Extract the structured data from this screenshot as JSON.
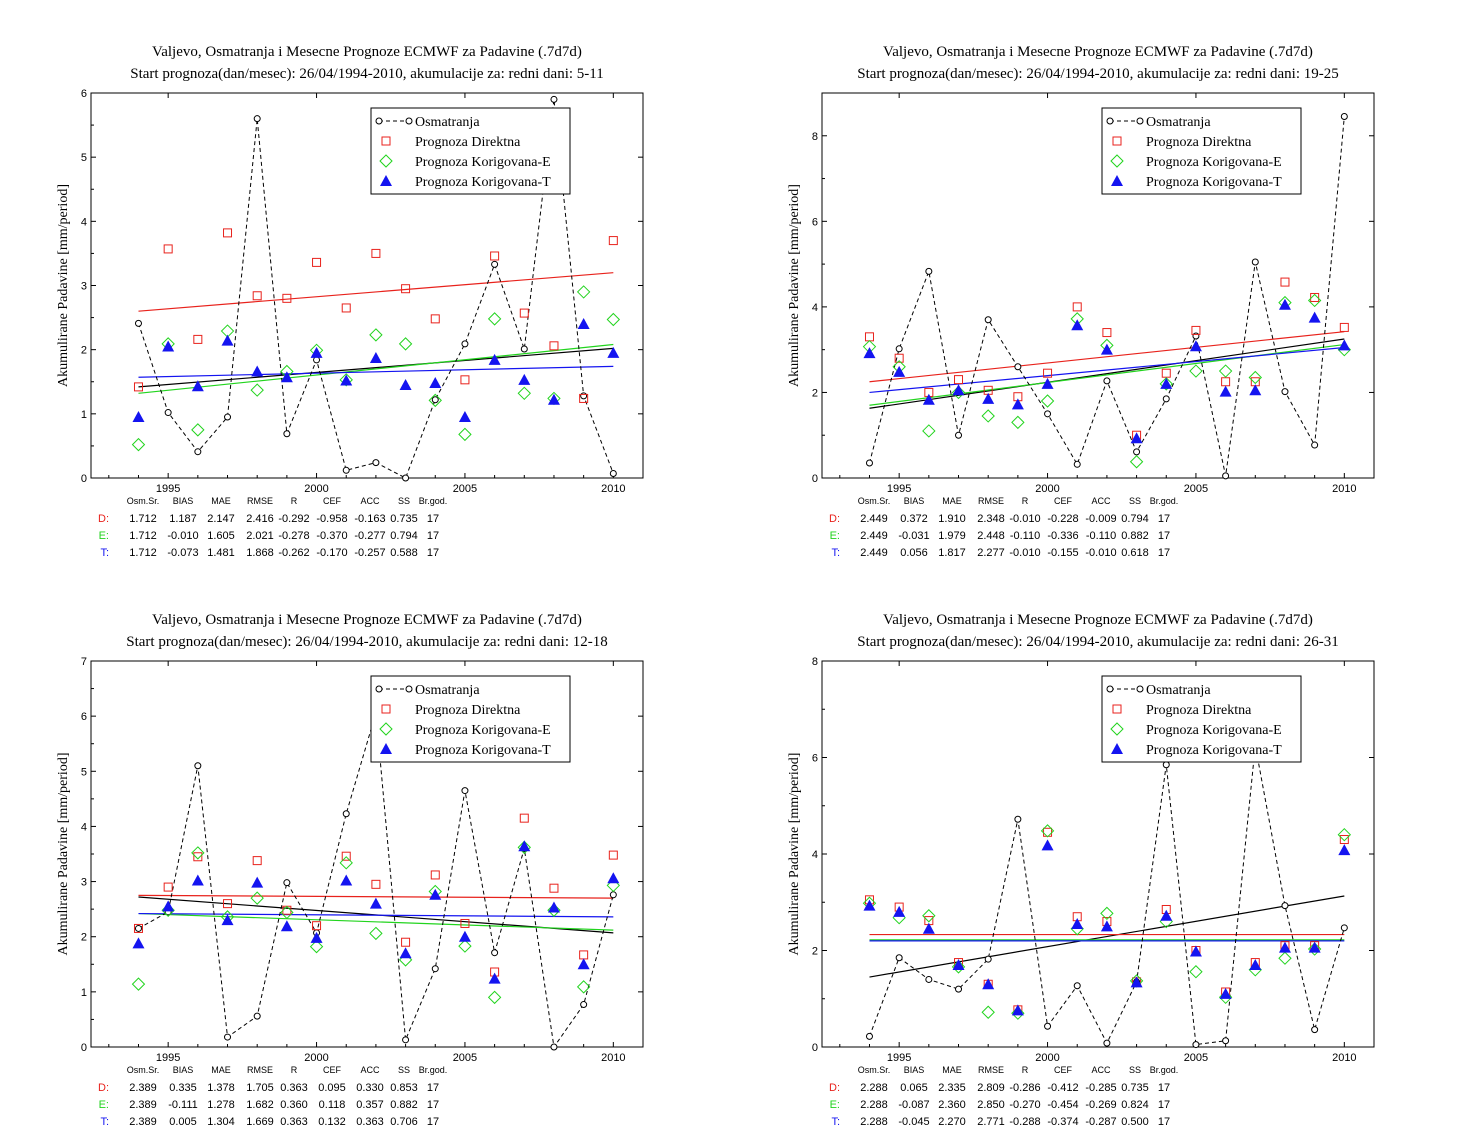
{
  "stats_headers": [
    "Osm.Sr.",
    "BIAS",
    "MAE",
    "RMSE",
    "R",
    "CEF",
    "ACC",
    "SS",
    "Br.god."
  ],
  "colors": {
    "obs": "#000000",
    "D": "#e8221c",
    "E": "#22d41e",
    "T": "#1414f0"
  },
  "chart_data": [
    {
      "type": "scatter",
      "title": "Valjevo, Osmatranja i Mesecne Prognoze ECMWF za Padavine (.7d7d)",
      "subtitle": "Start prognoza(dan/mesec): 26/04/1994-2010, akumulacije za: redni dani: 5-11",
      "ylabel": "Akumulirane Padavine [mm/period]",
      "xlabel": "",
      "xlim": [
        1992.4,
        2011.0
      ],
      "ylim": [
        0,
        6
      ],
      "xticks": [
        1995,
        2000,
        2005,
        2010
      ],
      "yticks": [
        0,
        1,
        2,
        3,
        4,
        5,
        6
      ],
      "legend_position": "top-right",
      "x": [
        1994,
        1995,
        1996,
        1997,
        1998,
        1999,
        2000,
        2001,
        2002,
        2003,
        2004,
        2005,
        2006,
        2007,
        2008,
        2009,
        2010
      ],
      "series": [
        {
          "name": "Osmatranja",
          "values": [
            2.41,
            1.02,
            0.41,
            0.95,
            5.6,
            0.69,
            1.84,
            0.12,
            0.24,
            0.0,
            1.22,
            2.09,
            3.33,
            2.01,
            5.9,
            1.28,
            0.07
          ]
        },
        {
          "name": "Prognoza Direktna",
          "values": [
            1.42,
            3.57,
            2.16,
            3.82,
            2.84,
            2.8,
            3.36,
            2.65,
            3.5,
            2.95,
            2.48,
            1.53,
            3.46,
            2.57,
            2.06,
            1.24,
            3.7
          ]
        },
        {
          "name": "Prognoza Korigovana-E",
          "values": [
            0.52,
            2.09,
            0.75,
            2.29,
            1.37,
            1.66,
            1.99,
            1.53,
            2.23,
            2.09,
            1.21,
            0.68,
            2.48,
            1.32,
            1.24,
            2.9,
            2.47
          ]
        },
        {
          "name": "Prognoza Korigovana-T",
          "values": [
            0.95,
            2.05,
            1.43,
            2.14,
            1.66,
            1.57,
            1.95,
            1.52,
            1.87,
            1.45,
            1.48,
            0.95,
            1.84,
            1.53,
            1.22,
            2.4,
            1.95
          ]
        }
      ],
      "trend_lines": {
        "obs": [
          1.42,
          2.02
        ],
        "D": [
          2.6,
          3.2
        ],
        "E": [
          1.32,
          2.08
        ],
        "T": [
          1.57,
          1.74
        ]
      },
      "stats": [
        {
          "label": "D:",
          "values": [
            "1.712",
            "1.187",
            "2.147",
            "2.416",
            "-0.292",
            "-0.958",
            "-0.163",
            "0.735",
            "17"
          ]
        },
        {
          "label": "E:",
          "values": [
            "1.712",
            "-0.010",
            "1.605",
            "2.021",
            "-0.278",
            "-0.370",
            "-0.277",
            "0.794",
            "17"
          ]
        },
        {
          "label": "T:",
          "values": [
            "1.712",
            "-0.073",
            "1.481",
            "1.868",
            "-0.262",
            "-0.170",
            "-0.257",
            "0.588",
            "17"
          ]
        }
      ]
    },
    {
      "type": "scatter",
      "title": "Valjevo, Osmatranja i Mesecne Prognoze ECMWF za Padavine (.7d7d)",
      "subtitle": "Start prognoza(dan/mesec): 26/04/1994-2010, akumulacije za: redni dani: 19-25",
      "ylabel": "Akumulirane Padavine [mm/period]",
      "xlabel": "",
      "xlim": [
        1992.4,
        2011.0
      ],
      "ylim": [
        0,
        9
      ],
      "xticks": [
        1995,
        2000,
        2005,
        2010
      ],
      "yticks": [
        0,
        2,
        4,
        6,
        8
      ],
      "legend_position": "top-right",
      "x": [
        1994,
        1995,
        1996,
        1997,
        1998,
        1999,
        2000,
        2001,
        2002,
        2003,
        2004,
        2005,
        2006,
        2007,
        2008,
        2009,
        2010
      ],
      "series": [
        {
          "name": "Osmatranja",
          "values": [
            0.35,
            3.02,
            4.83,
            1.0,
            3.7,
            2.6,
            1.5,
            0.32,
            2.27,
            0.61,
            1.85,
            3.32,
            0.05,
            5.05,
            2.02,
            0.77,
            8.45
          ]
        },
        {
          "name": "Prognoza Direktna",
          "values": [
            3.3,
            2.8,
            2.0,
            2.3,
            2.05,
            1.9,
            2.45,
            4.0,
            3.4,
            1.0,
            2.45,
            3.45,
            2.25,
            2.25,
            4.58,
            4.22,
            3.52
          ]
        },
        {
          "name": "Prognoza Korigovana-E",
          "values": [
            3.07,
            2.6,
            1.1,
            2.0,
            1.45,
            1.3,
            1.8,
            3.72,
            3.1,
            0.38,
            2.2,
            2.5,
            2.5,
            2.35,
            4.1,
            4.15,
            3.0
          ]
        },
        {
          "name": "Prognoza Korigovana-T",
          "values": [
            2.92,
            2.48,
            1.83,
            2.05,
            1.85,
            1.72,
            2.2,
            3.57,
            3.0,
            0.93,
            2.2,
            3.08,
            2.02,
            2.05,
            4.05,
            3.75,
            3.1
          ]
        }
      ],
      "trend_lines": {
        "obs": [
          1.63,
          3.25
        ],
        "D": [
          2.25,
          3.42
        ],
        "E": [
          1.7,
          3.12
        ],
        "T": [
          2.0,
          3.05
        ]
      },
      "stats": [
        {
          "label": "D:",
          "values": [
            "2.449",
            "0.372",
            "1.910",
            "2.348",
            "-0.010",
            "-0.228",
            "-0.009",
            "0.794",
            "17"
          ]
        },
        {
          "label": "E:",
          "values": [
            "2.449",
            "-0.031",
            "1.979",
            "2.448",
            "-0.110",
            "-0.336",
            "-0.110",
            "0.882",
            "17"
          ]
        },
        {
          "label": "T:",
          "values": [
            "2.449",
            "0.056",
            "1.817",
            "2.277",
            "-0.010",
            "-0.155",
            "-0.010",
            "0.618",
            "17"
          ]
        }
      ]
    },
    {
      "type": "scatter",
      "title": "Valjevo, Osmatranja i Mesecne Prognoze ECMWF za Padavine (.7d7d)",
      "subtitle": "Start prognoza(dan/mesec): 26/04/1994-2010, akumulacije za: redni dani: 12-18",
      "ylabel": "Akumulirane Padavine [mm/period]",
      "xlabel": "",
      "xlim": [
        1992.4,
        2011.0
      ],
      "ylim": [
        0,
        7
      ],
      "xticks": [
        1995,
        2000,
        2005,
        2010
      ],
      "yticks": [
        0,
        1,
        2,
        3,
        4,
        5,
        6,
        7
      ],
      "legend_position": "top-right",
      "x": [
        1994,
        1995,
        1996,
        1997,
        1998,
        1999,
        2000,
        2001,
        2002,
        2003,
        2004,
        2005,
        2006,
        2007,
        2008,
        2009,
        2010
      ],
      "series": [
        {
          "name": "Osmatranja",
          "values": [
            2.15,
            2.45,
            5.1,
            0.18,
            0.56,
            2.98,
            2.07,
            4.23,
            6.06,
            0.13,
            1.42,
            4.65,
            1.71,
            3.6,
            0.0,
            0.77,
            2.76
          ]
        },
        {
          "name": "Prognoza Direktna",
          "values": [
            2.15,
            2.9,
            3.45,
            2.6,
            3.38,
            2.48,
            2.2,
            3.46,
            2.95,
            1.9,
            3.12,
            2.24,
            1.36,
            4.15,
            2.88,
            1.67,
            3.48
          ]
        },
        {
          "name": "Prognoza Korigovana-E",
          "values": [
            1.14,
            2.48,
            3.52,
            2.36,
            2.7,
            2.44,
            1.82,
            3.34,
            2.06,
            1.58,
            2.82,
            1.83,
            0.9,
            3.62,
            2.48,
            1.09,
            2.93
          ]
        },
        {
          "name": "Prognoza Korigovana-T",
          "values": [
            1.88,
            2.55,
            3.02,
            2.3,
            2.98,
            2.19,
            1.98,
            3.02,
            2.6,
            1.7,
            2.76,
            2.0,
            1.24,
            3.64,
            2.53,
            1.5,
            3.06
          ]
        }
      ],
      "trend_lines": {
        "obs": [
          2.72,
          2.07
        ],
        "D": [
          2.75,
          2.7
        ],
        "E": [
          2.42,
          2.12
        ],
        "T": [
          2.42,
          2.36
        ]
      },
      "stats": [
        {
          "label": "D:",
          "values": [
            "2.389",
            "0.335",
            "1.378",
            "1.705",
            "0.363",
            "0.095",
            "0.330",
            "0.853",
            "17"
          ]
        },
        {
          "label": "E:",
          "values": [
            "2.389",
            "-0.111",
            "1.278",
            "1.682",
            "0.360",
            "0.118",
            "0.357",
            "0.882",
            "17"
          ]
        },
        {
          "label": "T:",
          "values": [
            "2.389",
            "0.005",
            "1.304",
            "1.669",
            "0.363",
            "0.132",
            "0.363",
            "0.706",
            "17"
          ]
        }
      ]
    },
    {
      "type": "scatter",
      "title": "Valjevo, Osmatranja i Mesecne Prognoze ECMWF za Padavine (.7d7d)",
      "subtitle": "Start prognoza(dan/mesec): 26/04/1994-2010, akumulacije za: redni dani: 26-31",
      "ylabel": "Akumulirane Padavine [mm/period]",
      "xlabel": "",
      "xlim": [
        1992.4,
        2011.0
      ],
      "ylim": [
        0,
        8
      ],
      "xticks": [
        1995,
        2000,
        2005,
        2010
      ],
      "yticks": [
        0,
        2,
        4,
        6,
        8
      ],
      "legend_position": "top-right",
      "x": [
        1994,
        1995,
        1996,
        1997,
        1998,
        1999,
        2000,
        2001,
        2002,
        2003,
        2004,
        2005,
        2006,
        2007,
        2008,
        2009,
        2010
      ],
      "series": [
        {
          "name": "Osmatranja",
          "values": [
            0.22,
            1.85,
            1.4,
            1.2,
            1.82,
            4.72,
            0.43,
            1.27,
            0.08,
            1.35,
            5.85,
            0.05,
            0.13,
            6.25,
            2.93,
            0.36,
            2.47
          ]
        },
        {
          "name": "Prognoza Direktna",
          "values": [
            3.05,
            2.9,
            2.62,
            1.75,
            1.3,
            0.77,
            4.45,
            2.7,
            2.6,
            1.35,
            2.85,
            2.0,
            1.14,
            1.75,
            2.1,
            2.1,
            4.3
          ]
        },
        {
          "name": "Prognoza Korigovana-E",
          "values": [
            2.98,
            2.68,
            2.72,
            1.66,
            0.72,
            0.7,
            4.48,
            2.45,
            2.77,
            1.37,
            2.6,
            1.56,
            1.03,
            1.6,
            1.84,
            2.03,
            4.4
          ]
        },
        {
          "name": "Prognoza Korigovana-T",
          "values": [
            2.93,
            2.8,
            2.45,
            1.7,
            1.3,
            0.76,
            4.18,
            2.55,
            2.5,
            1.34,
            2.72,
            1.98,
            1.1,
            1.7,
            2.06,
            2.06,
            4.08
          ]
        }
      ],
      "trend_lines": {
        "obs": [
          1.45,
          3.13
        ],
        "D": [
          2.33,
          2.33
        ],
        "E": [
          2.22,
          2.22
        ],
        "T": [
          2.2,
          2.2
        ]
      },
      "stats": [
        {
          "label": "D:",
          "values": [
            "2.288",
            "0.065",
            "2.335",
            "2.809",
            "-0.286",
            "-0.412",
            "-0.285",
            "0.735",
            "17"
          ]
        },
        {
          "label": "E:",
          "values": [
            "2.288",
            "-0.087",
            "2.360",
            "2.850",
            "-0.270",
            "-0.454",
            "-0.269",
            "0.824",
            "17"
          ]
        },
        {
          "label": "T:",
          "values": [
            "2.288",
            "-0.045",
            "2.270",
            "2.771",
            "-0.288",
            "-0.374",
            "-0.287",
            "0.500",
            "17"
          ]
        }
      ]
    }
  ]
}
